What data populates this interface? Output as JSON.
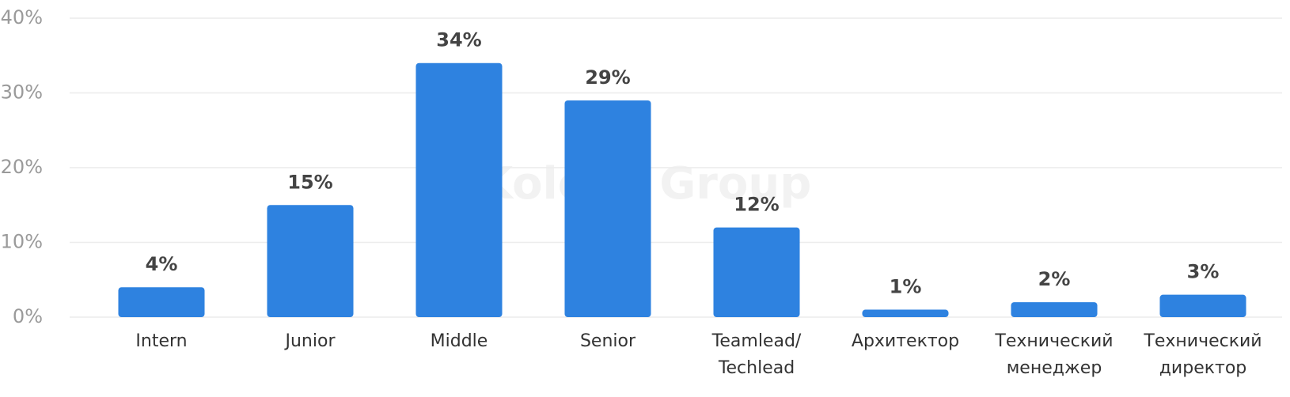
{
  "chart_data": {
    "type": "bar",
    "watermark": "Kolesa Group",
    "categories": [
      "Intern",
      "Junior",
      "Middle",
      "Senior",
      "Teamlead/\nTechlead",
      "Архитектор",
      "Технический\nменеджер",
      "Технический\nдиректор"
    ],
    "values": [
      4,
      15,
      34,
      29,
      12,
      1,
      2,
      3
    ],
    "value_labels": [
      "4%",
      "15%",
      "34%",
      "29%",
      "12%",
      "1%",
      "2%",
      "3%"
    ],
    "color": "#2e82e0",
    "ylim": [
      0,
      40
    ],
    "yticks": [
      {
        "value": 0,
        "label": "0%"
      },
      {
        "value": 10,
        "label": "10%"
      },
      {
        "value": 20,
        "label": "20%"
      },
      {
        "value": 30,
        "label": "30%"
      },
      {
        "value": 40,
        "label": "40%"
      }
    ],
    "grid": true
  }
}
